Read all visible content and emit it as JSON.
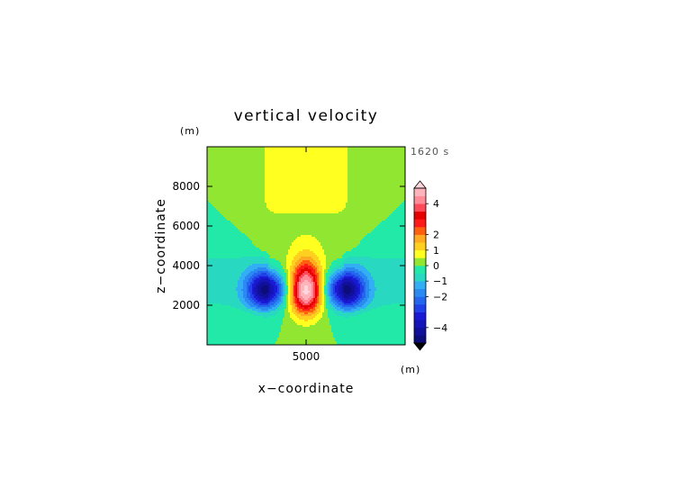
{
  "chart_data": {
    "type": "heatmap",
    "title": "vertical velocity",
    "xlabel": "x−coordinate",
    "ylabel": "z−coordinate",
    "x_unit": "(m)",
    "y_unit": "(m)",
    "time_label": "1620 s",
    "xlim": [
      0,
      10000
    ],
    "ylim": [
      0,
      10000
    ],
    "x_ticks": [
      {
        "value": 5000,
        "label": "5000"
      }
    ],
    "y_ticks": [
      {
        "value": 2000,
        "label": "2000"
      },
      {
        "value": 4000,
        "label": "4000"
      },
      {
        "value": 6000,
        "label": "6000"
      },
      {
        "value": 8000,
        "label": "8000"
      }
    ],
    "field": {
      "updraft": {
        "x": 5000,
        "z": 2700,
        "peak": 5.3,
        "sx": 820,
        "sz_below": 1150,
        "sz_above": 1500
      },
      "downdrafts": [
        {
          "x": 3000,
          "z": 2800,
          "peak": -4.3,
          "sx": 1000,
          "sz": 950
        },
        {
          "x": 7000,
          "z": 2800,
          "peak": -4.3,
          "sx": 1000,
          "sz": 950
        }
      ],
      "plume": {
        "x": 5000,
        "z_top": 10000,
        "half_width": 2300,
        "value": 0.6
      },
      "outflow_band": {
        "z": 3200,
        "half_height": 1400,
        "value": -0.55
      }
    },
    "colorbar": {
      "levels": [
        -5,
        -4.5,
        -4,
        -3.5,
        -3,
        -2.5,
        -2,
        -1.5,
        -1,
        -0.5,
        0,
        0.5,
        1,
        1.5,
        2,
        2.5,
        3,
        3.5,
        4,
        4.5,
        5
      ],
      "colors": [
        "#0c0c7a",
        "#10109a",
        "#1414b8",
        "#1a1ad4",
        "#2040e8",
        "#2466ee",
        "#2a8af2",
        "#32aef4",
        "#28d8c0",
        "#22e8a8",
        "#90e630",
        "#ffff20",
        "#ffd020",
        "#ffaa20",
        "#ff6010",
        "#ff1a1a",
        "#e60000",
        "#ff4a5a",
        "#ff8c96",
        "#ffb4bc"
      ],
      "under_color": "#000000",
      "over_color": "#ffd6dc",
      "tick_labels": [
        {
          "value": 4,
          "label": "4"
        },
        {
          "value": 2,
          "label": "2"
        },
        {
          "value": 1,
          "label": "1"
        },
        {
          "value": 0,
          "label": "0"
        },
        {
          "value": -1,
          "label": "−1"
        },
        {
          "value": -2,
          "label": "−2"
        },
        {
          "value": -4,
          "label": "−4"
        }
      ]
    }
  }
}
